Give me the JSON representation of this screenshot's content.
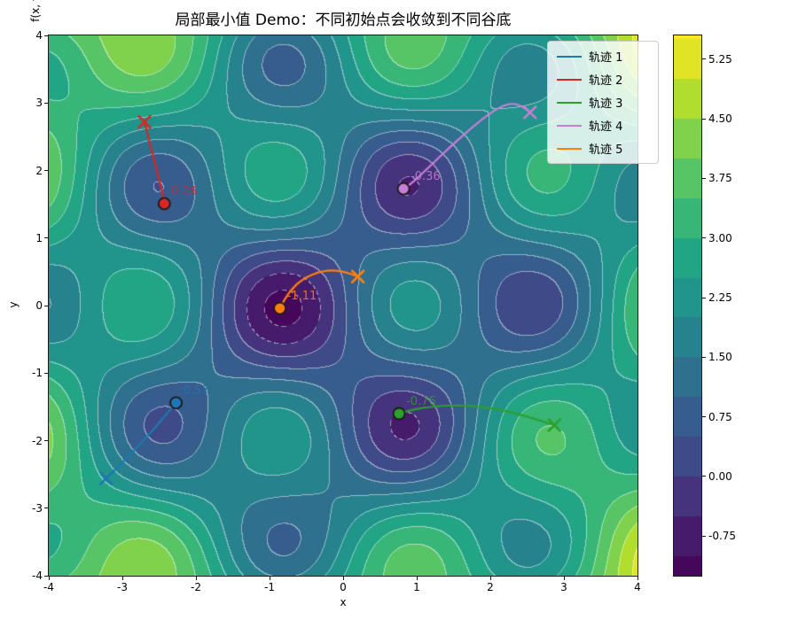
{
  "title": "局部最小值 Demo：不同初始点会收敛到不同谷底",
  "axes": {
    "xlabel": "x",
    "ylabel": "y",
    "xlim": [
      -4,
      4
    ],
    "ylim": [
      -4,
      4
    ],
    "xticks": [
      -4,
      -3,
      -2,
      -1,
      0,
      1,
      2,
      3,
      4
    ],
    "yticks": [
      -4,
      -3,
      -2,
      -1,
      0,
      1,
      2,
      3,
      4
    ]
  },
  "colorbar": {
    "label": "f(x, y)",
    "vmin": -1.25,
    "vmax": 5.55,
    "ticks": [
      {
        "v": 5.25,
        "label": "5.25"
      },
      {
        "v": 4.5,
        "label": "4.50"
      },
      {
        "v": 3.75,
        "label": "3.75"
      },
      {
        "v": 3.0,
        "label": "3.00"
      },
      {
        "v": 2.25,
        "label": "2.25"
      },
      {
        "v": 1.5,
        "label": "1.50"
      },
      {
        "v": 0.75,
        "label": "0.75"
      },
      {
        "v": 0.0,
        "label": "0.00"
      },
      {
        "v": -0.75,
        "label": "-0.75"
      }
    ]
  },
  "chart_data": {
    "type": "heatmap",
    "subtype": "filled-contour-with-gradient-descent-trajectories",
    "colormap": "viridis",
    "viridis_stops": [
      [
        0.0,
        "#440154"
      ],
      [
        0.1,
        "#482475"
      ],
      [
        0.2,
        "#414487"
      ],
      [
        0.3,
        "#355f8d"
      ],
      [
        0.4,
        "#2a788e"
      ],
      [
        0.5,
        "#21918c"
      ],
      [
        0.6,
        "#22a884"
      ],
      [
        0.7,
        "#44bf70"
      ],
      [
        0.8,
        "#7ad151"
      ],
      [
        0.9,
        "#bddf26"
      ],
      [
        1.0,
        "#fde725"
      ]
    ],
    "contour": {
      "level_start": -1.0,
      "level_step": 0.5,
      "level_end": 5.5,
      "line_color": "#ffffff",
      "line_alpha": 0.5,
      "negative_dashed": true
    },
    "surface_model": {
      "formula": "f(x,y)=1.0+0.10(x^2+y^2)+1.30 sin(1.8x-0.04)sin(1.7y+1.5708)+0.25 sin(0.7x+2.3)sin(0.8y+0.4)-sum(wells)",
      "base": 1.0,
      "quad": 0.1,
      "amp1": 1.3,
      "kx1": 1.8,
      "phx1": -0.04,
      "ky1": 1.7,
      "phy1": 1.5708,
      "amp2": 0.25,
      "kx2": 0.7,
      "phx2": 2.3,
      "ky2": 0.8,
      "phy2": 0.4,
      "wells": [
        {
          "x": -0.85,
          "y": 0.0,
          "amp": 1.05,
          "s": 1.3
        },
        {
          "x": 0.9,
          "y": 1.85,
          "amp": 0.7,
          "s": 1.0
        },
        {
          "x": 0.9,
          "y": -1.85,
          "amp": 0.65,
          "s": 1.0
        },
        {
          "x": -2.6,
          "y": 1.85,
          "amp": 0.3,
          "s": 0.9
        },
        {
          "x": -2.6,
          "y": -1.85,
          "amp": 0.2,
          "s": 0.9
        },
        {
          "x": 2.64,
          "y": 0.0,
          "amp": 0.25,
          "s": 1.0
        },
        {
          "x": -0.85,
          "y": 3.7,
          "amp": 0.25,
          "s": 0.8
        }
      ]
    },
    "trajectories": [
      {
        "name": "轨迹 1",
        "color": "#1f77b4",
        "start_marker": "x",
        "end_marker": "o",
        "points": [
          [
            -3.22,
            -2.56
          ],
          [
            -3.0,
            -2.33
          ],
          [
            -2.75,
            -2.04
          ],
          [
            -2.54,
            -1.79
          ],
          [
            -2.4,
            -1.6
          ],
          [
            -2.3,
            -1.48
          ],
          [
            -2.27,
            -1.44
          ]
        ],
        "end_value_label": "0.57"
      },
      {
        "name": "轨迹 2",
        "color": "#d62728",
        "start_marker": "x",
        "end_marker": "o",
        "points": [
          [
            -2.7,
            2.72
          ],
          [
            -2.63,
            2.42
          ],
          [
            -2.56,
            2.12
          ],
          [
            -2.5,
            1.86
          ],
          [
            -2.45,
            1.64
          ],
          [
            -2.43,
            1.51
          ]
        ],
        "end_value_label": "0.26"
      },
      {
        "name": "轨迹 3",
        "color": "#2ca02c",
        "start_marker": "x",
        "end_marker": "o",
        "points": [
          [
            2.87,
            -1.77
          ],
          [
            2.45,
            -1.62
          ],
          [
            2.0,
            -1.51
          ],
          [
            1.55,
            -1.47
          ],
          [
            1.15,
            -1.5
          ],
          [
            0.88,
            -1.56
          ],
          [
            0.76,
            -1.6
          ]
        ],
        "end_value_label": "-0.76"
      },
      {
        "name": "轨迹 4",
        "color": "#c77fd6",
        "start_marker": "x",
        "end_marker": "o",
        "points": [
          [
            2.54,
            2.86
          ],
          [
            2.43,
            2.96
          ],
          [
            2.28,
            3.0
          ],
          [
            2.09,
            2.92
          ],
          [
            1.82,
            2.7
          ],
          [
            1.46,
            2.36
          ],
          [
            1.12,
            2.0
          ],
          [
            0.92,
            1.8
          ],
          [
            0.82,
            1.73
          ]
        ],
        "end_value_label": "-0.36"
      },
      {
        "name": "轨迹 5",
        "color": "#ff7f0e",
        "start_marker": "x",
        "end_marker": "o",
        "points": [
          [
            0.2,
            0.43
          ],
          [
            0.0,
            0.52
          ],
          [
            -0.28,
            0.52
          ],
          [
            -0.55,
            0.4
          ],
          [
            -0.74,
            0.2
          ],
          [
            -0.86,
            -0.04
          ]
        ],
        "end_value_label": "-1.11"
      }
    ],
    "minima_annotations": [
      {
        "text": "0.57",
        "x": -2.27,
        "y": -1.44,
        "color": "#1f77b4"
      },
      {
        "text": "0.26",
        "x": -2.43,
        "y": 1.51,
        "color": "#d62728"
      },
      {
        "text": "-0.76",
        "x": 0.76,
        "y": -1.6,
        "color": "#2ca02c"
      },
      {
        "text": "-0.36",
        "x": 0.82,
        "y": 1.73,
        "color": "#c77fd6"
      },
      {
        "text": "-1.11",
        "x": -0.86,
        "y": -0.04,
        "color": "#ff7f0e"
      }
    ]
  },
  "legend": {
    "position": "upper right"
  }
}
